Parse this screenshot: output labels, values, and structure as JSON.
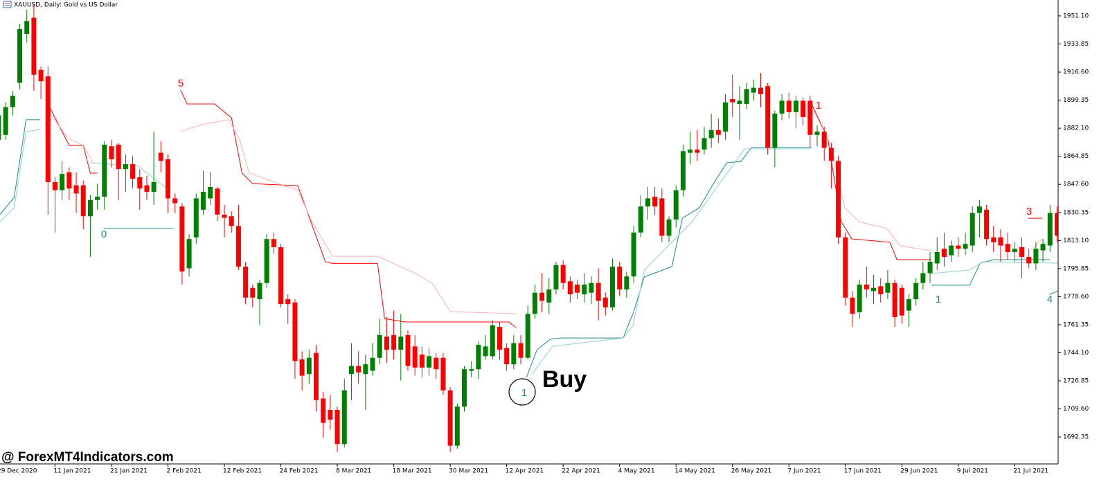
{
  "chart_data": {
    "type": "candlestick",
    "title": "XAUUSD, Daily:  Gold vs US Dollar",
    "watermark": "@ ForexMT4Indicators.com",
    "up_color": "#008000",
    "down_color": "#ff0000",
    "categories": [
      "29 Dec 2020",
      null,
      null,
      null,
      null,
      null,
      null,
      null,
      "11 Jan 2021",
      null,
      null,
      null,
      null,
      null,
      null,
      null,
      "21 Jan 2021",
      null,
      null,
      null,
      null,
      null,
      null,
      null,
      "2 Feb 2021",
      null,
      null,
      null,
      null,
      null,
      null,
      null,
      "12 Feb 2021",
      null,
      null,
      null,
      null,
      null,
      null,
      null,
      "24 Feb 2021",
      null,
      null,
      null,
      null,
      null,
      null,
      null,
      "8 Mar 2021",
      null,
      null,
      null,
      null,
      null,
      null,
      null,
      "18 Mar 2021",
      null,
      null,
      null,
      null,
      null,
      null,
      null,
      "30 Mar 2021",
      null,
      null,
      null,
      null,
      null,
      null,
      null,
      "12 Apr 2021",
      null,
      null,
      null,
      null,
      null,
      null,
      null,
      "22 Apr 2021",
      null,
      null,
      null,
      null,
      null,
      null,
      null,
      "4 May 2021",
      null,
      null,
      null,
      null,
      null,
      null,
      null,
      "14 May 2021",
      null,
      null,
      null,
      null,
      null,
      null,
      null,
      "26 May 2021",
      null,
      null,
      null,
      null,
      null,
      null,
      null,
      "7 Jun 2021",
      null,
      null,
      null,
      null,
      null,
      null,
      null,
      "17 Jun 2021",
      null,
      null,
      null,
      null,
      null,
      null,
      null,
      "29 Jun 2021",
      null,
      null,
      null,
      null,
      null,
      null,
      null,
      "9 Jul 2021",
      null,
      null,
      null,
      null,
      null,
      null,
      null,
      "21 Jul 2021",
      null,
      null,
      null,
      null,
      null,
      null
    ],
    "open": [
      1875,
      1878,
      1895,
      1910,
      1940,
      1950,
      1918,
      1914,
      1849,
      1844,
      1855,
      1847,
      1847,
      1828,
      1838,
      1840,
      1871,
      1872,
      1857,
      1860,
      1852,
      1847,
      1843,
      1867,
      1863,
      1839,
      1834,
      1796,
      1815,
      1832,
      1839,
      1845,
      1829,
      1828,
      1822,
      1797,
      1784,
      1777,
      1787,
      1814,
      1809,
      1777,
      1775,
      1740,
      1731,
      1744,
      1716,
      1709,
      1709,
      1688,
      1731,
      1736,
      1731,
      1733,
      1741,
      1754,
      1755,
      1746,
      1755,
      1748,
      1743,
      1735,
      1741,
      1741,
      1721,
      1687,
      1711,
      1733,
      1734,
      1742,
      1742,
      1760,
      1747,
      1737,
      1750,
      1741,
      1768,
      1781,
      1775,
      1783,
      1798,
      1788,
      1786,
      1780,
      1781,
      1787,
      1778,
      1772,
      1797,
      1783,
      1791,
      1818,
      1834,
      1840,
      1839,
      1816,
      1826,
      1844,
      1867,
      1869,
      1869,
      1876,
      1881,
      1880,
      1900,
      1897,
      1897,
      1904,
      1907,
      1908,
      1870,
      1891,
      1899,
      1892,
      1899,
      1899,
      1878,
      1880,
      1870,
      1862,
      1815,
      1778,
      1769,
      1786,
      1782,
      1785,
      1781,
      1787,
      1784,
      1770,
      1777,
      1787,
      1793,
      1799,
      1808,
      1804,
      1810,
      1808,
      1810,
      1830,
      1832,
      1815,
      1815,
      1811,
      1806,
      1809,
      1803,
      1799,
      1807,
      1810,
      1830
    ],
    "high": [
      1895,
      1898,
      1905,
      1946,
      1955,
      1958,
      1920,
      1920,
      1852,
      1862,
      1858,
      1855,
      1850,
      1841,
      1848,
      1874,
      1875,
      1873,
      1866,
      1865,
      1857,
      1853,
      1880,
      1874,
      1866,
      1842,
      1836,
      1817,
      1842,
      1856,
      1855,
      1846,
      1835,
      1831,
      1835,
      1800,
      1786,
      1789,
      1817,
      1818,
      1811,
      1780,
      1777,
      1745,
      1746,
      1749,
      1720,
      1718,
      1711,
      1728,
      1750,
      1745,
      1743,
      1750,
      1765,
      1766,
      1770,
      1768,
      1758,
      1755,
      1748,
      1747,
      1744,
      1744,
      1723,
      1713,
      1736,
      1739,
      1751,
      1755,
      1764,
      1763,
      1750,
      1755,
      1755,
      1773,
      1786,
      1793,
      1790,
      1800,
      1801,
      1791,
      1789,
      1793,
      1791,
      1796,
      1781,
      1802,
      1800,
      1794,
      1822,
      1841,
      1846,
      1846,
      1845,
      1828,
      1847,
      1872,
      1880,
      1881,
      1883,
      1891,
      1888,
      1903,
      1915,
      1908,
      1910,
      1912,
      1916,
      1910,
      1893,
      1903,
      1904,
      1902,
      1901,
      1902,
      1884,
      1883,
      1873,
      1865,
      1818,
      1782,
      1789,
      1797,
      1792,
      1790,
      1795,
      1789,
      1786,
      1780,
      1790,
      1800,
      1806,
      1815,
      1818,
      1813,
      1815,
      1818,
      1834,
      1838,
      1835,
      1822,
      1820,
      1818,
      1812,
      1815,
      1808,
      1812,
      1814,
      1835,
      1834
    ],
    "low": [
      1872,
      1875,
      1890,
      1906,
      1935,
      1905,
      1900,
      1829,
      1818,
      1838,
      1838,
      1830,
      1820,
      1803,
      1832,
      1832,
      1858,
      1838,
      1843,
      1845,
      1832,
      1838,
      1835,
      1855,
      1830,
      1830,
      1786,
      1791,
      1811,
      1829,
      1835,
      1825,
      1815,
      1818,
      1795,
      1774,
      1772,
      1761,
      1784,
      1805,
      1772,
      1762,
      1728,
      1721,
      1725,
      1708,
      1692,
      1697,
      1683,
      1686,
      1715,
      1725,
      1709,
      1730,
      1737,
      1738,
      1740,
      1727,
      1733,
      1730,
      1729,
      1730,
      1728,
      1718,
      1683,
      1685,
      1708,
      1729,
      1728,
      1740,
      1740,
      1740,
      1733,
      1734,
      1737,
      1740,
      1765,
      1769,
      1768,
      1780,
      1783,
      1775,
      1777,
      1775,
      1774,
      1764,
      1767,
      1770,
      1779,
      1778,
      1787,
      1815,
      1826,
      1829,
      1812,
      1812,
      1821,
      1840,
      1860,
      1862,
      1866,
      1870,
      1873,
      1875,
      1889,
      1875,
      1894,
      1899,
      1895,
      1866,
      1858,
      1887,
      1888,
      1882,
      1884,
      1870,
      1871,
      1862,
      1845,
      1811,
      1773,
      1760,
      1765,
      1778,
      1774,
      1775,
      1777,
      1760,
      1762,
      1760,
      1773,
      1783,
      1787,
      1795,
      1797,
      1800,
      1803,
      1804,
      1806,
      1815,
      1810,
      1806,
      1800,
      1801,
      1800,
      1790,
      1796,
      1795,
      1800,
      1806,
      1812
    ],
    "close": [
      1890,
      1895,
      1902,
      1943,
      1948,
      1915,
      1911,
      1849,
      1844,
      1854,
      1845,
      1842,
      1828,
      1838,
      1840,
      1872,
      1863,
      1857,
      1860,
      1851,
      1845,
      1843,
      1849,
      1862,
      1839,
      1836,
      1794,
      1814,
      1839,
      1843,
      1846,
      1829,
      1827,
      1822,
      1797,
      1778,
      1778,
      1787,
      1814,
      1809,
      1774,
      1774,
      1739,
      1730,
      1741,
      1715,
      1701,
      1703,
      1688,
      1721,
      1736,
      1732,
      1737,
      1741,
      1755,
      1746,
      1746,
      1754,
      1736,
      1735,
      1735,
      1742,
      1734,
      1721,
      1687,
      1711,
      1734,
      1734,
      1749,
      1748,
      1761,
      1746,
      1737,
      1750,
      1741,
      1768,
      1781,
      1776,
      1783,
      1798,
      1787,
      1780,
      1781,
      1786,
      1787,
      1776,
      1772,
      1797,
      1783,
      1791,
      1818,
      1834,
      1839,
      1834,
      1816,
      1826,
      1844,
      1868,
      1869,
      1867,
      1876,
      1881,
      1878,
      1898,
      1898,
      1899,
      1906,
      1907,
      1903,
      1870,
      1891,
      1899,
      1892,
      1899,
      1889,
      1878,
      1880,
      1870,
      1862,
      1815,
      1778,
      1768,
      1786,
      1783,
      1784,
      1780,
      1787,
      1766,
      1767,
      1777,
      1787,
      1793,
      1800,
      1806,
      1803,
      1810,
      1808,
      1811,
      1830,
      1834,
      1814,
      1812,
      1810,
      1806,
      1808,
      1803,
      1799,
      1808,
      1811,
      1830,
      1816
    ],
    "indicators": [
      {
        "color": "#ff0000",
        "x": [
          7,
          10,
          12,
          13,
          14,
          null,
          25.8,
          26.7,
          30.6,
          33,
          34.5,
          36,
          42.4,
          46.3,
          47.3,
          53.7,
          54.7,
          57.6,
          72.3,
          73.3,
          null,
          115.2,
          117.5,
          119.4,
          120.9,
          126.3,
          127.3,
          132.2,
          null,
          145.9,
          147.9
        ],
        "values": [
          1897,
          1871.5,
          1871.5,
          1854.5,
          1854.5,
          null,
          1905.6,
          1897,
          1897,
          1888.5,
          1854.5,
          1848,
          1846.8,
          1800,
          1799,
          1799,
          1765,
          1763,
          1763,
          1759.6,
          null,
          1897,
          1875.8,
          1824.7,
          1814.1,
          1812,
          1801.3,
          1801.3,
          null,
          1826.8,
          1826.8
        ]
      },
      {
        "color": "#1a8a8a",
        "x": [
          0.2,
          2.2,
          3.9,
          5.9,
          null,
          14.9,
          24.7,
          null,
          74.8,
          76.3,
          78.2,
          79.7,
          88.5,
          90,
          91.5,
          95.4,
          96.9,
          99.3,
          101.3,
          103.2,
          105.2,
          106.7,
          115.2,
          null,
          132.2,
          137.6,
          139.1,
          141,
          149,
          null,
          148.9,
          150.1
        ],
        "values": [
          1829,
          1839.6,
          1887.3,
          1887.3,
          null,
          1820.5,
          1820.5,
          null,
          1729,
          1746,
          1752.4,
          1753.2,
          1753.2,
          1769.4,
          1790.7,
          1797,
          1826.8,
          1833.2,
          1848.1,
          1860.9,
          1861.7,
          1870.2,
          1870.2,
          null,
          1785.6,
          1785.6,
          1799.2,
          1801.3,
          1801.3,
          null,
          1780,
          1782
        ]
      },
      {
        "color": "#ffb0b0",
        "x": [
          7,
          9.9,
          12,
          13.4,
          null,
          25.8,
          28.7,
          32.6,
          34.1,
          35.5,
          42.4,
          44.4,
          47.3,
          53.7,
          59.1,
          61.5,
          64,
          73.3,
          null,
          115.5,
          118,
          119.9,
          121.9,
          125.8,
          127.8,
          132.2,
          null,
          146.4,
          147.9
        ],
        "values": [
          1892.8,
          1875.8,
          1871.5,
          1860.9,
          null,
          1880,
          1884.3,
          1887.3,
          1875.8,
          1854.5,
          1843.9,
          1824.7,
          1803.4,
          1803.4,
          1792.8,
          1786.4,
          1769.4,
          1768.1,
          null,
          1892.8,
          1871.5,
          1833.2,
          1824.7,
          1820.5,
          1809.8,
          1806.8,
          null,
          1807.7,
          1814.1
        ]
      },
      {
        "color": "#8fd0d0",
        "x": [
          0.2,
          2.2,
          3.9,
          5.9,
          null,
          12.9,
          19.8,
          24.2,
          null,
          75.6,
          78.5,
          88.5,
          89.9,
          91.5,
          98.3,
          105.7,
          115,
          null,
          132.2,
          137.6,
          139.5,
          150.1
        ],
        "values": [
          1824.7,
          1833.2,
          1880,
          1881.3,
          null,
          1860.9,
          1858.8,
          1843.9,
          null,
          1731.1,
          1748.1,
          1753.2,
          1760.9,
          1794.9,
          1824.7,
          1869.4,
          1869.4,
          null,
          1792.8,
          1794.9,
          1800,
          1799.2
        ]
      }
    ],
    "annotations": [
      {
        "text": "5",
        "color": "#ff0000"
      },
      {
        "text": "0",
        "color": "#1a8a8a"
      },
      {
        "text": "1",
        "color": "#ff0000"
      },
      {
        "text": "1",
        "color": "#1a8a8a"
      },
      {
        "text": "3",
        "color": "#ff0000"
      },
      {
        "text": "4",
        "color": "#1a8a8a"
      },
      {
        "text": "1",
        "color": "#1a8a8a"
      },
      {
        "text": "Buy",
        "color": "#000000"
      }
    ],
    "xlim": [
      0.2,
      150.15
    ],
    "ylim": [
      1675.78,
      1960.89
    ],
    "yticks": [
      {
        "value": 1951.1,
        "label": "1951.10"
      },
      1933.85,
      {
        "value": 1916.6,
        "label": "1916.60"
      },
      1899.35,
      {
        "value": 1882.1,
        "label": "1882.10"
      },
      1864.85,
      {
        "value": 1847.6,
        "label": "1847.60"
      },
      1830.35,
      {
        "value": 1813.1,
        "label": "1813.10"
      },
      1795.85,
      {
        "value": 1778.6,
        "label": "1778.60"
      },
      1761.35,
      {
        "value": 1744.1,
        "label": "1744.10"
      },
      1726.85,
      {
        "value": 1709.6,
        "label": "1709.60"
      },
      1692.35
    ]
  }
}
